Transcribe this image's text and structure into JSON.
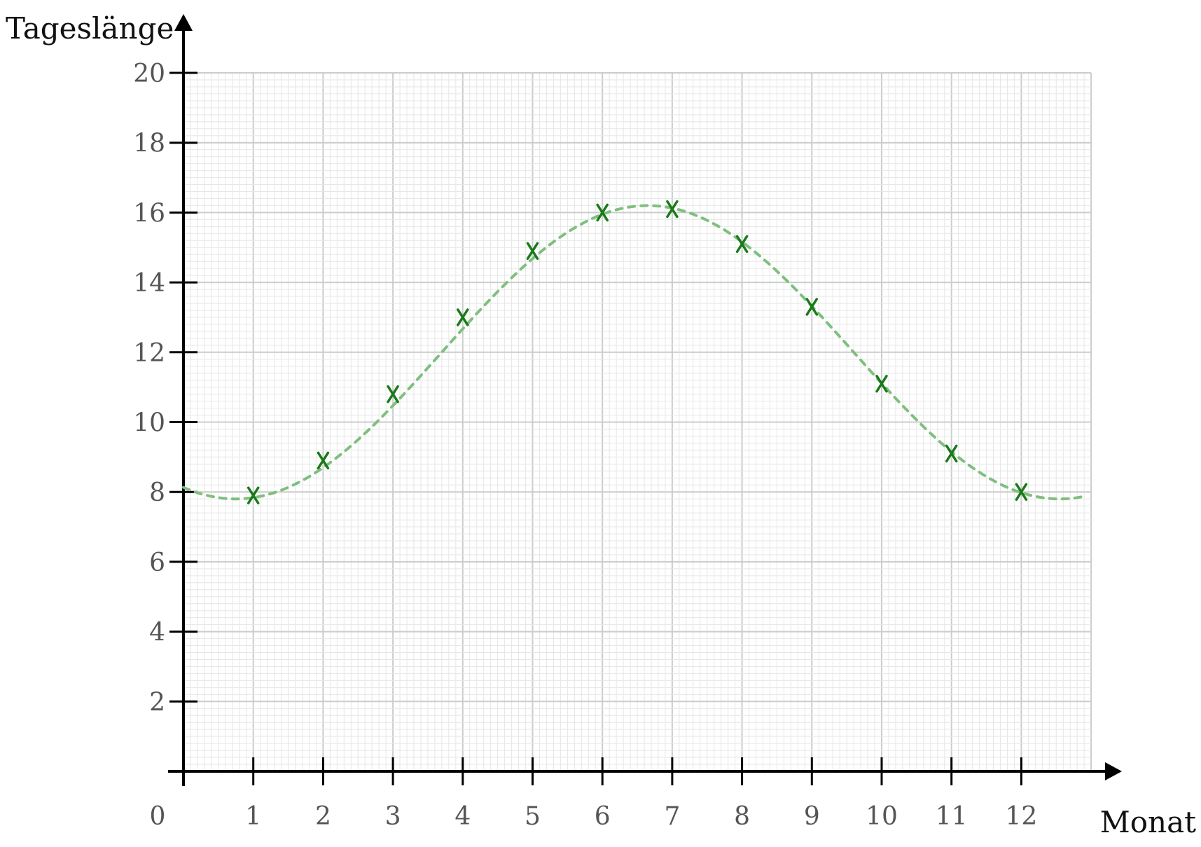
{
  "chart_data": {
    "type": "scatter",
    "xlabel": "Monat",
    "ylabel": "Tageslänge",
    "xlim": [
      0,
      13
    ],
    "ylim": [
      0,
      20
    ],
    "x_ticks": [
      0,
      1,
      2,
      3,
      4,
      5,
      6,
      7,
      8,
      9,
      10,
      11,
      12
    ],
    "y_ticks": [
      2,
      4,
      6,
      8,
      10,
      12,
      14,
      16,
      18,
      20
    ],
    "grid": true,
    "series": [
      {
        "type": "scatter",
        "marker": "x",
        "color": "#1a7a1a",
        "x": [
          1,
          2,
          3,
          4,
          5,
          6,
          7,
          8,
          9,
          10,
          11,
          12
        ],
        "y": [
          7.9,
          8.9,
          10.8,
          13.0,
          14.9,
          16.0,
          16.1,
          15.1,
          13.3,
          11.1,
          9.1,
          8.0
        ]
      },
      {
        "type": "line",
        "style": "dashed",
        "color": "#7fbf7f",
        "model": "sinusoid",
        "x_range": [
          0,
          12.9
        ],
        "amplitude": 4.2,
        "period": 11.8,
        "phase": 3.7,
        "offset": 12.0
      }
    ]
  }
}
